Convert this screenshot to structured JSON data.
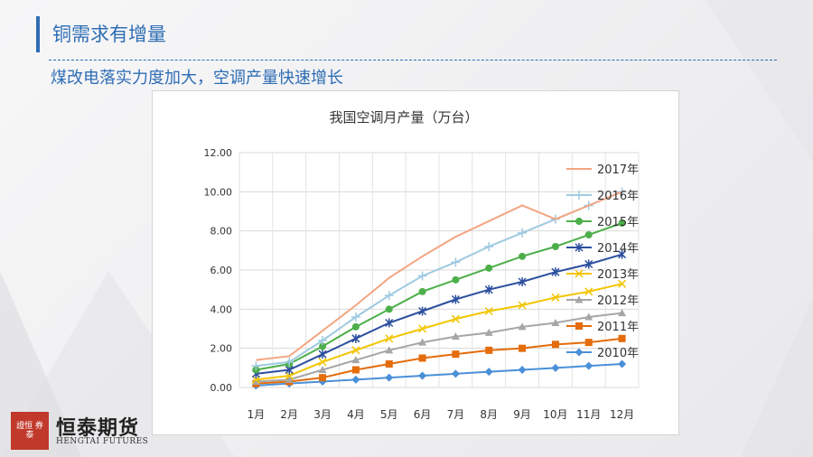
{
  "slide": {
    "title": "铜需求有增量",
    "subtitle": "煤改电落实力度加大，空调产量快速增长"
  },
  "logo": {
    "seal_text": "證恒 券泰",
    "name": "恒泰期货",
    "english": "HENGTAI FUTURES"
  },
  "colors": {
    "accent": "#2e6db4",
    "seal": "#c0392b"
  },
  "chart_data": {
    "type": "line",
    "title": "我国空调月产量（万台）",
    "xlabel": "",
    "ylabel": "",
    "ylim": [
      0,
      12
    ],
    "yticks": [
      "0.00",
      "2.00",
      "4.00",
      "6.00",
      "8.00",
      "10.00",
      "12.00"
    ],
    "yticks_values": [
      0,
      2,
      4,
      6,
      8,
      10,
      12
    ],
    "grid": true,
    "legend_position": "right",
    "categories": [
      "1月",
      "2月",
      "3月",
      "4月",
      "5月",
      "6月",
      "7月",
      "8月",
      "9月",
      "10月",
      "11月",
      "12月"
    ],
    "series": [
      {
        "name": "2017年",
        "color": "#f4a582",
        "marker": "none",
        "values": [
          1.4,
          1.6,
          2.9,
          4.2,
          5.6,
          6.7,
          7.7,
          8.5,
          9.3,
          8.6,
          9.3,
          10.0
        ]
      },
      {
        "name": "2016年",
        "color": "#9ecae1",
        "marker": "plus",
        "values": [
          1.1,
          1.3,
          2.4,
          3.6,
          4.7,
          5.7,
          6.4,
          7.2,
          7.9,
          8.6,
          9.3,
          10.0
        ]
      },
      {
        "name": "2015年",
        "color": "#4daf4a",
        "marker": "circle",
        "values": [
          0.9,
          1.2,
          2.1,
          3.1,
          4.0,
          4.9,
          5.5,
          6.1,
          6.7,
          7.2,
          7.8,
          8.4
        ]
      },
      {
        "name": "2014年",
        "color": "#2c4f9e",
        "marker": "star",
        "values": [
          0.7,
          0.9,
          1.7,
          2.5,
          3.3,
          3.9,
          4.5,
          5.0,
          5.4,
          5.9,
          6.3,
          6.8
        ]
      },
      {
        "name": "2013年",
        "color": "#f2c500",
        "marker": "x",
        "values": [
          0.4,
          0.6,
          1.3,
          1.9,
          2.5,
          3.0,
          3.5,
          3.9,
          4.2,
          4.6,
          4.9,
          5.3
        ]
      },
      {
        "name": "2012年",
        "color": "#a6a6a6",
        "marker": "triangle",
        "values": [
          0.3,
          0.4,
          0.9,
          1.4,
          1.9,
          2.3,
          2.6,
          2.8,
          3.1,
          3.3,
          3.6,
          3.8
        ]
      },
      {
        "name": "2011年",
        "color": "#e46c0a",
        "marker": "square",
        "values": [
          0.2,
          0.3,
          0.5,
          0.9,
          1.2,
          1.5,
          1.7,
          1.9,
          2.0,
          2.2,
          2.3,
          2.5
        ]
      },
      {
        "name": "2010年",
        "color": "#4a90d9",
        "marker": "diamond",
        "values": [
          0.1,
          0.2,
          0.3,
          0.4,
          0.5,
          0.6,
          0.7,
          0.8,
          0.9,
          1.0,
          1.1,
          1.2
        ]
      }
    ]
  }
}
